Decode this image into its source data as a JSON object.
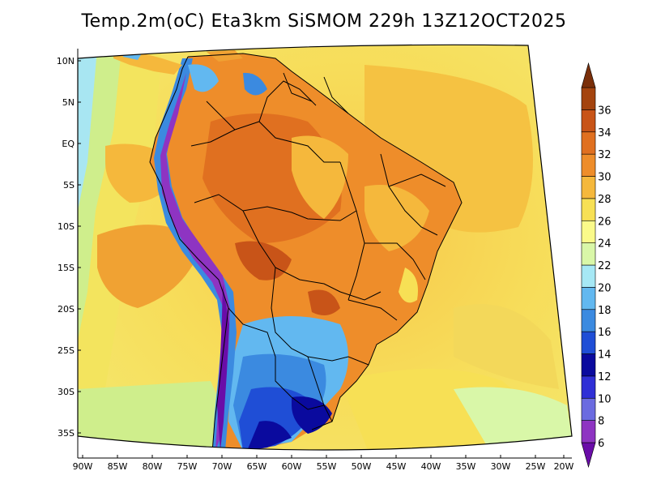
{
  "title": "Temp.2m(oC) Eta3km SiSMOM 229h 13Z12OCT2025",
  "lat_labels": [
    "10N",
    "5N",
    "EQ",
    "5S",
    "10S",
    "15S",
    "20S",
    "25S",
    "30S",
    "35S"
  ],
  "lon_labels": [
    "90W",
    "85W",
    "80W",
    "75W",
    "70W",
    "65W",
    "60W",
    "55W",
    "50W",
    "45W",
    "40W",
    "35W",
    "30W",
    "25W",
    "20W"
  ],
  "colorbar": {
    "labels": [
      "6",
      "8",
      "10",
      "12",
      "14",
      "16",
      "18",
      "20",
      "22",
      "24",
      "26",
      "28",
      "30",
      "32",
      "34",
      "36"
    ],
    "colors": [
      "#6a0da8",
      "#8e34c2",
      "#6b6be0",
      "#2f2fd6",
      "#0a0a9e",
      "#1f4ed6",
      "#3b8ae0",
      "#62b8f0",
      "#a6e8f5",
      "#d9f7a8",
      "#fafa8a",
      "#f7e055",
      "#f5b83c",
      "#ee8d2a",
      "#e07020",
      "#c85418",
      "#a4440f",
      "#7a2f0a"
    ]
  }
}
